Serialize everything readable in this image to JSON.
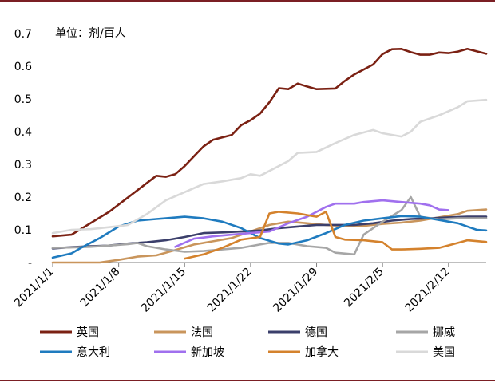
{
  "chart_data": {
    "type": "line",
    "unit_label": "单位：剂/百人",
    "y_tick_labels": [
      "-",
      "0.1",
      "0.2",
      "0.3",
      "0.4",
      "0.5",
      "0.6",
      "0.7"
    ],
    "ylim": [
      0,
      0.7
    ],
    "x_tick_labels": [
      "2021/1/1",
      "2021/1/8",
      "2021/1/15",
      "2021/1/22",
      "2021/1/29",
      "2021/2/5",
      "2021/2/12"
    ],
    "xlim": [
      0,
      46
    ],
    "grid": false,
    "legend_position": "bottom",
    "series": [
      {
        "name": "英国",
        "color": "#7b2113",
        "points": [
          [
            0,
            0.08
          ],
          [
            2,
            0.085
          ],
          [
            6,
            0.155
          ],
          [
            11,
            0.265
          ],
          [
            12,
            0.262
          ],
          [
            13,
            0.27
          ],
          [
            14,
            0.295
          ],
          [
            15,
            0.325
          ],
          [
            16,
            0.355
          ],
          [
            17,
            0.375
          ],
          [
            19,
            0.39
          ],
          [
            20,
            0.42
          ],
          [
            21,
            0.435
          ],
          [
            22,
            0.455
          ],
          [
            23,
            0.49
          ],
          [
            24,
            0.533
          ],
          [
            25,
            0.53
          ],
          [
            26,
            0.547
          ],
          [
            27,
            0.538
          ],
          [
            28,
            0.53
          ],
          [
            30,
            0.532
          ],
          [
            31,
            0.555
          ],
          [
            32,
            0.575
          ],
          [
            33,
            0.59
          ],
          [
            34,
            0.605
          ],
          [
            35,
            0.637
          ],
          [
            36,
            0.652
          ],
          [
            37,
            0.653
          ],
          [
            38,
            0.643
          ],
          [
            39,
            0.635
          ],
          [
            40,
            0.635
          ],
          [
            41,
            0.642
          ],
          [
            42,
            0.64
          ],
          [
            43,
            0.645
          ],
          [
            44,
            0.653
          ],
          [
            46,
            0.638
          ]
        ]
      },
      {
        "name": "法国",
        "color": "#c9955c",
        "points": [
          [
            0,
            0.0
          ],
          [
            5,
            0.0
          ],
          [
            7,
            0.008
          ],
          [
            9,
            0.018
          ],
          [
            11,
            0.022
          ],
          [
            13,
            0.038
          ],
          [
            15,
            0.055
          ],
          [
            17,
            0.065
          ],
          [
            19,
            0.075
          ],
          [
            21,
            0.095
          ],
          [
            23,
            0.115
          ],
          [
            25,
            0.125
          ],
          [
            27,
            0.12
          ],
          [
            29,
            0.115
          ],
          [
            31,
            0.112
          ],
          [
            33,
            0.112
          ],
          [
            35,
            0.118
          ],
          [
            37,
            0.122
          ],
          [
            39,
            0.128
          ],
          [
            41,
            0.138
          ],
          [
            43,
            0.148
          ],
          [
            44,
            0.158
          ],
          [
            46,
            0.162
          ]
        ]
      },
      {
        "name": "德国",
        "color": "#3b3f6b",
        "points": [
          [
            0,
            0.043
          ],
          [
            2,
            0.047
          ],
          [
            4,
            0.05
          ],
          [
            6,
            0.052
          ],
          [
            8,
            0.058
          ],
          [
            10,
            0.062
          ],
          [
            12,
            0.068
          ],
          [
            14,
            0.078
          ],
          [
            16,
            0.09
          ],
          [
            18,
            0.092
          ],
          [
            20,
            0.095
          ],
          [
            22,
            0.098
          ],
          [
            24,
            0.105
          ],
          [
            26,
            0.11
          ],
          [
            28,
            0.115
          ],
          [
            30,
            0.115
          ],
          [
            32,
            0.115
          ],
          [
            34,
            0.12
          ],
          [
            36,
            0.128
          ],
          [
            38,
            0.133
          ],
          [
            40,
            0.135
          ],
          [
            42,
            0.138
          ],
          [
            44,
            0.14
          ],
          [
            46,
            0.14
          ]
        ]
      },
      {
        "name": "挪威",
        "color": "#a6a6a6",
        "points": [
          [
            0,
            0.045
          ],
          [
            2,
            0.046
          ],
          [
            4,
            0.048
          ],
          [
            6,
            0.052
          ],
          [
            8,
            0.056
          ],
          [
            9,
            0.06
          ],
          [
            10,
            0.05
          ],
          [
            12,
            0.04
          ],
          [
            14,
            0.033
          ],
          [
            16,
            0.035
          ],
          [
            18,
            0.04
          ],
          [
            20,
            0.045
          ],
          [
            22,
            0.055
          ],
          [
            23,
            0.06
          ],
          [
            25,
            0.06
          ],
          [
            27,
            0.05
          ],
          [
            29,
            0.045
          ],
          [
            30,
            0.03
          ],
          [
            32,
            0.025
          ],
          [
            33,
            0.085
          ],
          [
            35,
            0.125
          ],
          [
            37,
            0.16
          ],
          [
            38,
            0.2
          ],
          [
            39,
            0.14
          ],
          [
            41,
            0.132
          ],
          [
            43,
            0.135
          ],
          [
            46,
            0.135
          ]
        ]
      },
      {
        "name": "意大利",
        "color": "#1f7bbf",
        "points": [
          [
            0,
            0.015
          ],
          [
            2,
            0.028
          ],
          [
            3,
            0.045
          ],
          [
            5,
            0.075
          ],
          [
            7,
            0.11
          ],
          [
            9,
            0.128
          ],
          [
            11,
            0.133
          ],
          [
            12,
            0.135
          ],
          [
            14,
            0.14
          ],
          [
            16,
            0.135
          ],
          [
            18,
            0.125
          ],
          [
            20,
            0.105
          ],
          [
            22,
            0.075
          ],
          [
            24,
            0.058
          ],
          [
            25,
            0.055
          ],
          [
            27,
            0.068
          ],
          [
            29,
            0.09
          ],
          [
            31,
            0.115
          ],
          [
            33,
            0.128
          ],
          [
            35,
            0.135
          ],
          [
            37,
            0.142
          ],
          [
            39,
            0.14
          ],
          [
            41,
            0.13
          ],
          [
            43,
            0.12
          ],
          [
            45,
            0.1
          ],
          [
            46,
            0.098
          ]
        ]
      },
      {
        "name": "新加坡",
        "color": "#a070ee",
        "points": [
          [
            13,
            0.048
          ],
          [
            15,
            0.073
          ],
          [
            17,
            0.08
          ],
          [
            19,
            0.085
          ],
          [
            21,
            0.09
          ],
          [
            23,
            0.095
          ],
          [
            25,
            0.12
          ],
          [
            27,
            0.14
          ],
          [
            29,
            0.17
          ],
          [
            30,
            0.18
          ],
          [
            32,
            0.18
          ],
          [
            33,
            0.185
          ],
          [
            35,
            0.19
          ],
          [
            37,
            0.185
          ],
          [
            39,
            0.18
          ],
          [
            40,
            0.175
          ],
          [
            41,
            0.162
          ],
          [
            42,
            0.16
          ]
        ]
      },
      {
        "name": "加拿大",
        "color": "#d4822d",
        "points": [
          [
            14,
            0.012
          ],
          [
            16,
            0.025
          ],
          [
            18,
            0.045
          ],
          [
            20,
            0.07
          ],
          [
            22,
            0.078
          ],
          [
            23,
            0.15
          ],
          [
            24,
            0.155
          ],
          [
            26,
            0.15
          ],
          [
            28,
            0.14
          ],
          [
            29,
            0.155
          ],
          [
            30,
            0.078
          ],
          [
            31,
            0.07
          ],
          [
            33,
            0.068
          ],
          [
            35,
            0.062
          ],
          [
            36,
            0.04
          ],
          [
            37,
            0.04
          ],
          [
            39,
            0.042
          ],
          [
            41,
            0.045
          ],
          [
            43,
            0.06
          ],
          [
            44,
            0.068
          ],
          [
            46,
            0.063
          ]
        ]
      },
      {
        "name": "美国",
        "color": "#d9d9d9",
        "points": [
          [
            0,
            0.09
          ],
          [
            2,
            0.1
          ],
          [
            4,
            0.102
          ],
          [
            6,
            0.108
          ],
          [
            8,
            0.115
          ],
          [
            10,
            0.148
          ],
          [
            12,
            0.19
          ],
          [
            14,
            0.215
          ],
          [
            16,
            0.24
          ],
          [
            18,
            0.248
          ],
          [
            20,
            0.258
          ],
          [
            21,
            0.27
          ],
          [
            22,
            0.265
          ],
          [
            23,
            0.28
          ],
          [
            25,
            0.31
          ],
          [
            26,
            0.335
          ],
          [
            28,
            0.338
          ],
          [
            30,
            0.365
          ],
          [
            32,
            0.39
          ],
          [
            34,
            0.405
          ],
          [
            35,
            0.395
          ],
          [
            37,
            0.385
          ],
          [
            38,
            0.4
          ],
          [
            39,
            0.43
          ],
          [
            41,
            0.45
          ],
          [
            43,
            0.475
          ],
          [
            44,
            0.493
          ],
          [
            46,
            0.497
          ]
        ]
      }
    ]
  }
}
